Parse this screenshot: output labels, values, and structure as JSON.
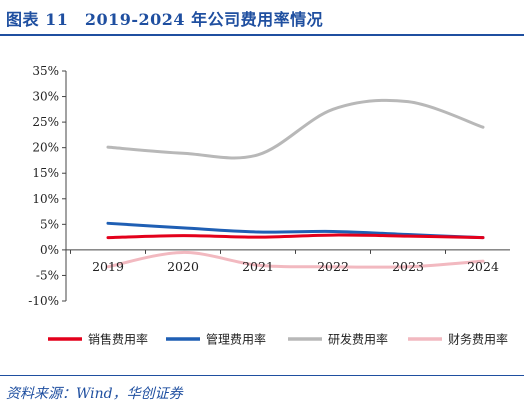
{
  "header": {
    "title": "图表 11　2019-2024 年公司费用率情况"
  },
  "footer": {
    "source": "资料来源：Wind，华创证券"
  },
  "chart_data": {
    "type": "line",
    "categories": [
      "2019",
      "2020",
      "2021",
      "2022",
      "2023",
      "2024"
    ],
    "y_ticks": [
      "35%",
      "30%",
      "25%",
      "20%",
      "15%",
      "10%",
      "5%",
      "0%",
      "-5%",
      "-10%"
    ],
    "ylim": [
      -10,
      35
    ],
    "y_unit": "%",
    "smooth": true,
    "grid": false,
    "legend_position": "bottom",
    "series": [
      {
        "name": "销售费用率",
        "color": "#e3001b",
        "values": [
          2.4,
          2.8,
          2.5,
          2.9,
          2.7,
          2.4
        ]
      },
      {
        "name": "管理费用率",
        "color": "#1f5fb4",
        "values": [
          5.2,
          4.3,
          3.5,
          3.6,
          3.0,
          2.4
        ]
      },
      {
        "name": "研发费用率",
        "color": "#b8b8b8",
        "values": [
          20.1,
          18.9,
          18.6,
          27.5,
          29.0,
          24.0
        ]
      },
      {
        "name": "财务费用率",
        "color": "#f2b9c0",
        "values": [
          -3.3,
          -0.5,
          -3.0,
          -3.3,
          -3.3,
          -2.2
        ]
      }
    ]
  }
}
